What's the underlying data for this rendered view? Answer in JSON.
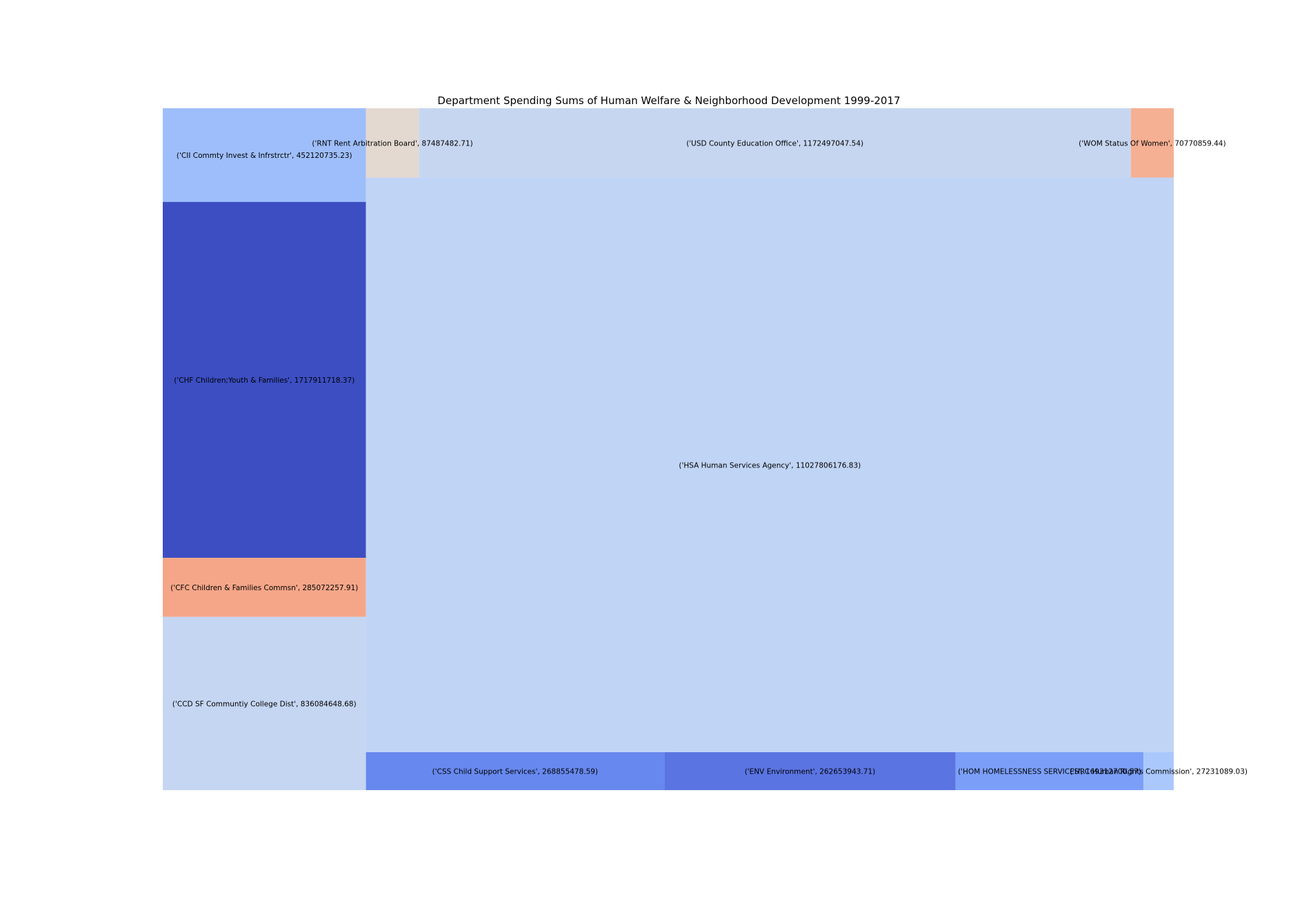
{
  "chart_data": {
    "type": "treemap",
    "title": "Department Spending Sums of Human Welfare & Neighborhood Development 1999-2017",
    "xlabel": "",
    "ylabel": "",
    "grid": false,
    "legend": "none",
    "items": [
      {
        "label": "('CII Commty Invest & Infrstrctr', 452120735.23)",
        "name": "CII Commty Invest & Infrstrctr",
        "value": 452120735.23,
        "color": "#9ebefb"
      },
      {
        "label": "('CHF Children;Youth & Families', 1717911718.37)",
        "name": "CHF Children;Youth & Families",
        "value": 1717911718.37,
        "color": "#3c4ec2"
      },
      {
        "label": "('CFC Children & Families Commsn', 285072257.91)",
        "name": "CFC Children & Families Commsn",
        "value": 285072257.91,
        "color": "#f5a688"
      },
      {
        "label": "('CCD SF Communtiy College Dist', 836084648.68)",
        "name": "CCD SF Communtiy College Dist",
        "value": 836084648.68,
        "color": "#c5d6f2"
      },
      {
        "label": "('RNT Rent Arbitration Board', 87487482.71)",
        "name": "RNT Rent Arbitration Board",
        "value": 87487482.71,
        "color": "#e4d9d0"
      },
      {
        "label": "('USD County Education Office', 1172497047.54)",
        "name": "USD County Education Office",
        "value": 1172497047.54,
        "color": "#c6d6f1"
      },
      {
        "label": "('WOM Status Of Women', 70770859.44)",
        "name": "WOM Status Of Women",
        "value": 70770859.44,
        "color": "#f5b093"
      },
      {
        "label": "('HSA Human Services Agency', 11027806176.83)",
        "name": "HSA Human Services Agency",
        "value": 11027806176.83,
        "color": "#c0d4f5"
      },
      {
        "label": "('CSS Child Support Services', 268855478.59)",
        "name": "CSS Child Support Services",
        "value": 268855478.59,
        "color": "#6788ee"
      },
      {
        "label": "('ENV Environment', 262653943.71)",
        "name": "ENV Environment",
        "value": 262653943.71,
        "color": "#5a74e2"
      },
      {
        "label": "('HOM HOMELESSNESS SERVICES', 169312700.57)",
        "name": "HOM HOMELESSNESS SERVICES",
        "value": 169312700.57,
        "color": "#7b9ff9"
      },
      {
        "label": "('HRC Human Rights Commission', 27231089.03)",
        "name": "HRC Human Rights Commission",
        "value": 27231089.03,
        "color": "#abc8fd"
      }
    ]
  }
}
